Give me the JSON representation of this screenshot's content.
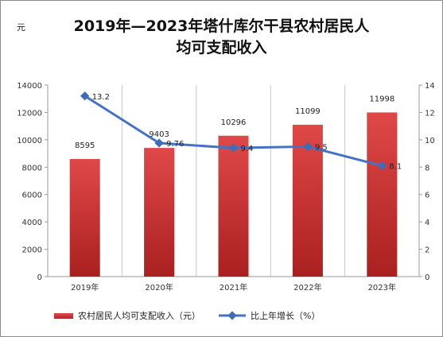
{
  "title_line1": "2019年—2023年塔什库尔干县农村居民人",
  "title_line2": "均可支配收入",
  "unit_label": "元",
  "legend": {
    "bar_label": "农村居民人均可支配收入（元）",
    "line_label": "比上年增长（%）"
  },
  "colors": {
    "bar_top": "#e04848",
    "bar_bottom": "#aa2020",
    "line": "#4472c4",
    "marker": "#3f6db3",
    "grid": "#c8c8c8",
    "axis": "#9a9a9a"
  },
  "chart_data": {
    "type": "bar",
    "categories": [
      "2019年",
      "2020年",
      "2021年",
      "2022年",
      "2023年"
    ],
    "series": [
      {
        "name": "农村居民人均可支配收入（元）",
        "type": "bar",
        "axis": "left",
        "values": [
          8595,
          9403,
          10296,
          11099,
          11998
        ]
      },
      {
        "name": "比上年增长（%）",
        "type": "line",
        "axis": "right",
        "values": [
          13.2,
          9.76,
          9.4,
          9.5,
          8.1
        ]
      }
    ],
    "y_left": {
      "min": 0,
      "max": 14000,
      "ticks": [
        "0",
        "2000",
        "4000",
        "6000",
        "8000",
        "10000",
        "12000",
        "14000"
      ]
    },
    "y_right": {
      "min": 0,
      "max": 14,
      "ticks": [
        "0",
        "2",
        "4",
        "6",
        "8",
        "10",
        "12",
        "14"
      ]
    },
    "grid": "vertical",
    "legend_position": "bottom"
  }
}
